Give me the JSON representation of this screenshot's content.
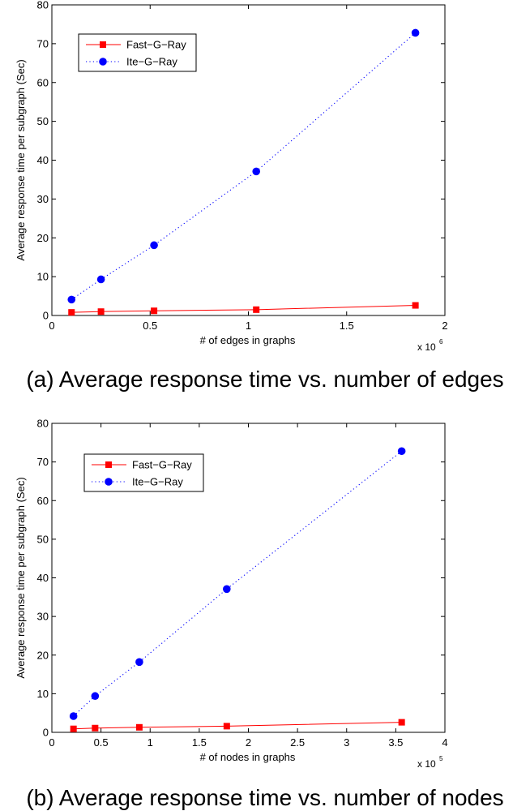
{
  "chart_data": [
    {
      "type": "line",
      "caption": "(a) Average response time vs. number of edges",
      "xlabel": "# of edges in graphs",
      "ylabel": "Average response time per subgraph (Sec)",
      "x_multiplier": {
        "base": "x 10",
        "exp": "6"
      },
      "xlim": [
        0,
        2
      ],
      "ylim": [
        0,
        80
      ],
      "xticks": [
        0,
        0.5,
        1,
        1.5,
        2
      ],
      "xtick_labels": [
        "0",
        "0.5",
        "1",
        "1.5",
        "2"
      ],
      "yticks": [
        0,
        10,
        20,
        30,
        40,
        50,
        60,
        70,
        80
      ],
      "ytick_labels": [
        "0",
        "10",
        "20",
        "30",
        "40",
        "50",
        "60",
        "70",
        "80"
      ],
      "legend_position": "top-left",
      "series": [
        {
          "name": "Fast−G−Ray",
          "color": "#ff0000",
          "marker": "square",
          "line": "solid",
          "x": [
            0.1,
            0.25,
            0.52,
            1.04,
            1.85
          ],
          "y": [
            0.8,
            1.0,
            1.2,
            1.5,
            2.6
          ]
        },
        {
          "name": "Ite−G−Ray",
          "color": "#0000ff",
          "marker": "circle",
          "line": "dotted",
          "x": [
            0.1,
            0.25,
            0.52,
            1.04,
            1.85
          ],
          "y": [
            4.1,
            9.3,
            18.1,
            37.1,
            72.8
          ]
        }
      ]
    },
    {
      "type": "line",
      "caption": "(b) Average response time vs. number of nodes",
      "xlabel": "# of nodes in graphs",
      "ylabel": "Average response time per subgraph (Sec)",
      "x_multiplier": {
        "base": "x 10",
        "exp": "5"
      },
      "xlim": [
        0,
        4
      ],
      "ylim": [
        0,
        80
      ],
      "xticks": [
        0,
        0.5,
        1,
        1.5,
        2,
        2.5,
        3,
        3.5,
        4
      ],
      "xtick_labels": [
        "0",
        "0.5",
        "1",
        "1.5",
        "2",
        "2.5",
        "3",
        "3.5",
        "4"
      ],
      "yticks": [
        0,
        10,
        20,
        30,
        40,
        50,
        60,
        70,
        80
      ],
      "ytick_labels": [
        "0",
        "10",
        "20",
        "30",
        "40",
        "50",
        "60",
        "70",
        "80"
      ],
      "legend_position": "top-left",
      "series": [
        {
          "name": "Fast−G−Ray",
          "color": "#ff0000",
          "marker": "square",
          "line": "solid",
          "x": [
            0.22,
            0.44,
            0.89,
            1.78,
            3.56
          ],
          "y": [
            0.9,
            1.1,
            1.3,
            1.6,
            2.6
          ]
        },
        {
          "name": "Ite−G−Ray",
          "color": "#0000ff",
          "marker": "circle",
          "line": "dotted",
          "x": [
            0.22,
            0.44,
            0.89,
            1.78,
            3.56
          ],
          "y": [
            4.2,
            9.4,
            18.2,
            37.1,
            72.8
          ]
        }
      ]
    }
  ]
}
